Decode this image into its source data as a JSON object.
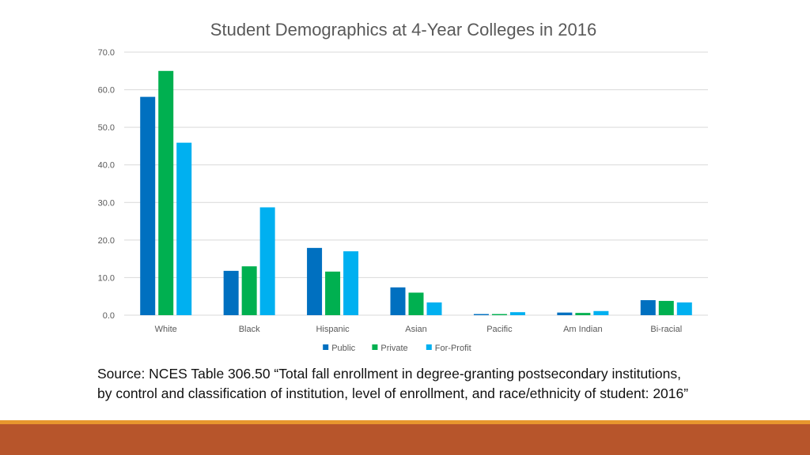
{
  "chart_data": {
    "type": "bar",
    "title": "Student Demographics at 4-Year Colleges in 2016",
    "categories": [
      "White",
      "Black",
      "Hispanic",
      "Asian",
      "Pacific",
      "Am Indian",
      "Bi-racial"
    ],
    "series": [
      {
        "name": "Public",
        "color": "#0070c0",
        "values": [
          58.1,
          11.8,
          17.9,
          7.4,
          0.3,
          0.7,
          4.0
        ]
      },
      {
        "name": "Private",
        "color": "#00b050",
        "values": [
          65.0,
          13.0,
          11.6,
          6.0,
          0.3,
          0.6,
          3.8
        ]
      },
      {
        "name": "For-Profit",
        "color": "#00b0f0",
        "values": [
          45.9,
          28.7,
          17.0,
          3.4,
          0.8,
          1.1,
          3.4
        ]
      }
    ],
    "yticks": [
      "0.0",
      "10.0",
      "20.0",
      "30.0",
      "40.0",
      "50.0",
      "60.0",
      "70.0"
    ],
    "ylim": [
      0,
      70
    ],
    "xlabel": "",
    "ylabel": "",
    "legend_position": "bottom-center",
    "grid": true
  },
  "source_note": "Source: NCES Table 306.50 “Total fall enrollment in degree-granting postsecondary institutions, by control and classification of institution, level of enrollment, and race/ethnicity of student: 2016”",
  "colors": {
    "footer_band": "#b7552b",
    "footer_line": "#e8962e",
    "gridline": "#d9d9d9"
  }
}
